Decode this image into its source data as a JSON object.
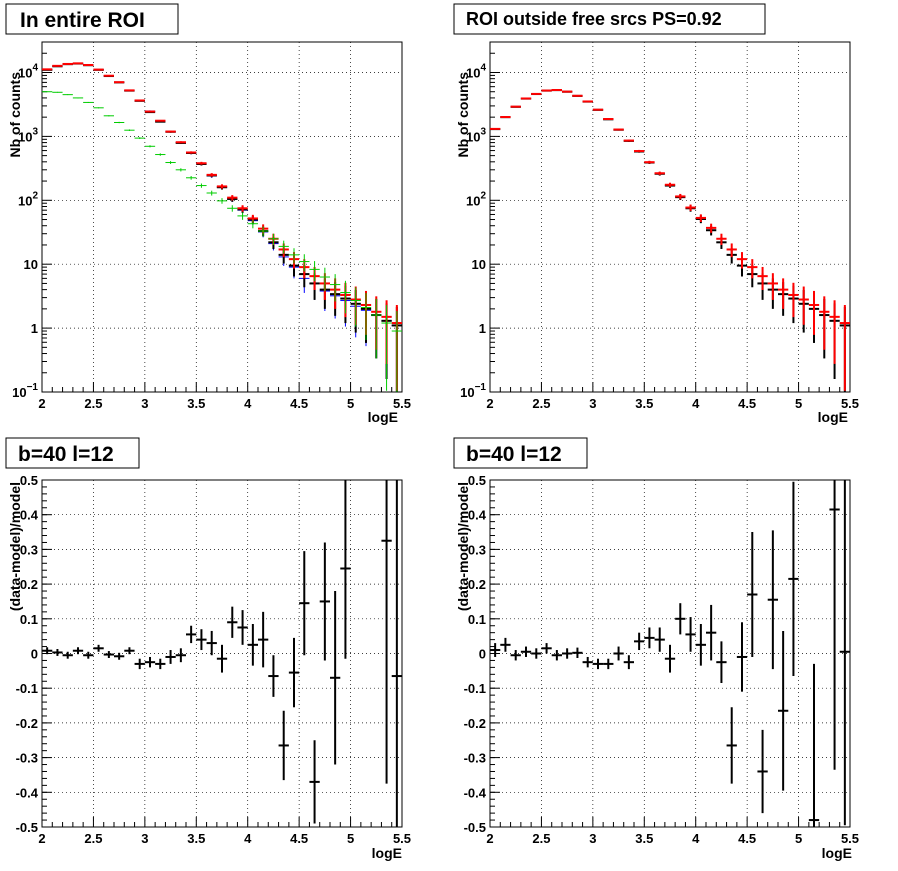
{
  "chart_data": [
    {
      "type": "scatter",
      "title": "In entire ROI",
      "xlabel": "logE",
      "ylabel": "Nb of counts",
      "xlim": [
        2,
        5.5
      ],
      "ylim": [
        0.1,
        30000
      ],
      "yscale": "log",
      "grid": true,
      "x_ticks": [
        "2",
        "2.5",
        "3",
        "3.5",
        "4",
        "4.5",
        "5",
        "5.5"
      ],
      "y_ticks": [
        {
          "value": 0.1,
          "base": "10",
          "exp": "−1"
        },
        {
          "value": 1,
          "label": "1"
        },
        {
          "value": 10,
          "label": "10"
        },
        {
          "value": 100,
          "base": "10",
          "exp": "2"
        },
        {
          "value": 1000,
          "base": "10",
          "exp": "3"
        },
        {
          "value": 10000,
          "base": "10",
          "exp": "4"
        }
      ],
      "series": [
        {
          "color": "#0000ff",
          "x": [
            2.05,
            2.15,
            2.25,
            2.35,
            2.45,
            2.55,
            2.65,
            2.75,
            2.85,
            2.95,
            3.05,
            3.15,
            3.25,
            3.35,
            3.45,
            3.55,
            3.65,
            3.75,
            3.85,
            3.95,
            4.05,
            4.15,
            4.25,
            4.35,
            4.45,
            4.55,
            4.65,
            4.75,
            4.85,
            4.95,
            5.05,
            5.15,
            5.25,
            5.35,
            5.45
          ],
          "y": [
            11000,
            12500,
            13500,
            13800,
            13000,
            11000,
            8800,
            7000,
            5200,
            3600,
            2500,
            1750,
            1180,
            800,
            550,
            370,
            240,
            160,
            105,
            70,
            48,
            32,
            21,
            13,
            9,
            6,
            5,
            3.8,
            3.2,
            2.7,
            2.2,
            1.9,
            1.6,
            1.3,
            1.1
          ]
        },
        {
          "color": "#000000",
          "x": [
            2.05,
            2.15,
            2.25,
            2.35,
            2.45,
            2.55,
            2.65,
            2.75,
            2.85,
            2.95,
            3.05,
            3.15,
            3.25,
            3.35,
            3.45,
            3.55,
            3.65,
            3.75,
            3.85,
            3.95,
            4.05,
            4.15,
            4.25,
            4.35,
            4.45,
            4.55,
            4.65,
            4.75,
            4.85,
            4.95,
            5.05,
            5.15,
            5.25,
            5.35,
            5.45
          ],
          "y": [
            11000,
            12500,
            13500,
            13800,
            13000,
            11000,
            8800,
            7000,
            5200,
            3600,
            2400,
            1700,
            1180,
            790,
            550,
            370,
            245,
            160,
            105,
            72,
            50,
            33,
            22,
            14,
            9.5,
            7,
            5,
            4,
            3.4,
            2.9,
            2.4,
            2,
            1.6,
            1.3,
            1.1
          ]
        },
        {
          "color": "#ff0000",
          "x": [
            2.05,
            2.15,
            2.25,
            2.35,
            2.45,
            2.55,
            2.65,
            2.75,
            2.85,
            2.95,
            3.05,
            3.15,
            3.25,
            3.35,
            3.45,
            3.55,
            3.65,
            3.75,
            3.85,
            3.95,
            4.05,
            4.15,
            4.25,
            4.35,
            4.45,
            4.55,
            4.65,
            4.75,
            4.85,
            4.95,
            5.05,
            5.15,
            5.25,
            5.35,
            5.45
          ],
          "y": [
            11200,
            12700,
            13600,
            13900,
            13100,
            11100,
            8900,
            7050,
            5250,
            3650,
            2450,
            1760,
            1190,
            810,
            560,
            380,
            250,
            165,
            110,
            75,
            52,
            36,
            25,
            17,
            12,
            9,
            6.5,
            5,
            4,
            3.3,
            2.8,
            2.3,
            1.8,
            1.5,
            1.2
          ]
        },
        {
          "color": "#00cc00",
          "x": [
            2.05,
            2.15,
            2.25,
            2.35,
            2.45,
            2.55,
            2.65,
            2.75,
            2.85,
            2.95,
            3.05,
            3.15,
            3.25,
            3.35,
            3.45,
            3.55,
            3.65,
            3.75,
            3.85,
            3.95,
            4.05,
            4.15,
            4.25,
            4.35,
            4.45,
            4.55,
            4.65,
            4.75,
            4.85,
            4.95,
            5.05,
            5.15,
            5.25,
            5.35,
            5.45
          ],
          "y": [
            5000,
            4900,
            4500,
            4000,
            3400,
            2800,
            2100,
            1650,
            1250,
            940,
            700,
            520,
            390,
            300,
            225,
            170,
            130,
            98,
            75,
            57,
            43,
            33,
            25,
            19,
            14,
            11,
            8.3,
            6.3,
            4.8,
            3.6,
            2.7,
            2.1,
            1.6,
            1.2,
            0.9
          ]
        }
      ]
    },
    {
      "type": "scatter",
      "title": "ROI outside free srcs PS=0.92",
      "xlabel": "logE",
      "ylabel": "Nb of counts",
      "xlim": [
        2,
        5.5
      ],
      "ylim": [
        0.1,
        30000
      ],
      "yscale": "log",
      "grid": true,
      "x_ticks": [
        "2",
        "2.5",
        "3",
        "3.5",
        "4",
        "4.5",
        "5",
        "5.5"
      ],
      "y_ticks": [
        {
          "value": 0.1,
          "base": "10",
          "exp": "−1"
        },
        {
          "value": 1,
          "label": "1"
        },
        {
          "value": 10,
          "label": "10"
        },
        {
          "value": 100,
          "base": "10",
          "exp": "2"
        },
        {
          "value": 1000,
          "base": "10",
          "exp": "3"
        },
        {
          "value": 10000,
          "base": "10",
          "exp": "4"
        }
      ],
      "series": [
        {
          "color": "#000000",
          "x": [
            2.05,
            2.15,
            2.25,
            2.35,
            2.45,
            2.55,
            2.65,
            2.75,
            2.85,
            2.95,
            3.05,
            3.15,
            3.25,
            3.35,
            3.45,
            3.55,
            3.65,
            3.75,
            3.85,
            3.95,
            4.05,
            4.15,
            4.25,
            4.35,
            4.45,
            4.55,
            4.65,
            4.75,
            4.85,
            4.95,
            5.05,
            5.15,
            5.25,
            5.35,
            5.45
          ],
          "y": [
            1300,
            2000,
            2900,
            3900,
            4600,
            5200,
            5300,
            5000,
            4300,
            3500,
            2600,
            1850,
            1270,
            850,
            580,
            390,
            260,
            170,
            112,
            75,
            51,
            34,
            22,
            14,
            9.5,
            7,
            5,
            4,
            3.4,
            2.9,
            2.4,
            2,
            1.6,
            1.3,
            1.1
          ]
        },
        {
          "color": "#ff0000",
          "x": [
            2.05,
            2.15,
            2.25,
            2.35,
            2.45,
            2.55,
            2.65,
            2.75,
            2.85,
            2.95,
            3.05,
            3.15,
            3.25,
            3.35,
            3.45,
            3.55,
            3.65,
            3.75,
            3.85,
            3.95,
            4.05,
            4.15,
            4.25,
            4.35,
            4.45,
            4.55,
            4.65,
            4.75,
            4.85,
            4.95,
            5.05,
            5.15,
            5.25,
            5.35,
            5.45
          ],
          "y": [
            1310,
            2010,
            2920,
            3920,
            4620,
            5220,
            5320,
            5020,
            4320,
            3520,
            2620,
            1870,
            1280,
            860,
            590,
            395,
            265,
            175,
            115,
            77,
            53,
            37,
            25,
            17,
            12,
            9,
            6.5,
            5,
            4,
            3.3,
            2.8,
            2.3,
            1.8,
            1.5,
            1.2
          ]
        }
      ]
    },
    {
      "type": "scatter",
      "title": "b=40 l=12",
      "xlabel": "logE",
      "ylabel": "(data-model)/model",
      "xlim": [
        2,
        5.5
      ],
      "ylim": [
        -0.5,
        0.5
      ],
      "grid": true,
      "x_ticks": [
        "2",
        "2.5",
        "3",
        "3.5",
        "4",
        "4.5",
        "5",
        "5.5"
      ],
      "y_ticks": [
        "-0.5",
        "-0.4",
        "-0.3",
        "-0.2",
        "-0.1",
        "0",
        "0.1",
        "0.2",
        "0.3",
        "0.4",
        "0.5"
      ],
      "series": [
        {
          "color": "#000000",
          "x": [
            2.05,
            2.15,
            2.25,
            2.35,
            2.45,
            2.55,
            2.65,
            2.75,
            2.85,
            2.95,
            3.05,
            3.15,
            3.25,
            3.35,
            3.45,
            3.55,
            3.65,
            3.75,
            3.85,
            3.95,
            4.05,
            4.15,
            4.25,
            4.35,
            4.45,
            4.55,
            4.65,
            4.75,
            4.85,
            4.95,
            5.05,
            5.15,
            5.25,
            5.35,
            5.45
          ],
          "y": [
            0.008,
            0.003,
            -0.005,
            0.008,
            -0.005,
            0.015,
            -0.003,
            -0.008,
            0.008,
            -0.03,
            -0.025,
            -0.03,
            -0.01,
            -0.005,
            0.055,
            0.04,
            0.03,
            -0.015,
            0.09,
            0.075,
            0.025,
            0.04,
            -0.065,
            -0.265,
            -0.055,
            0.145,
            -0.37,
            0.15,
            -0.07,
            0.245,
            0,
            0,
            0,
            0.325,
            -0.065
          ],
          "err": [
            0.01,
            0.01,
            0.01,
            0.01,
            0.01,
            0.01,
            0.01,
            0.01,
            0.01,
            0.015,
            0.015,
            0.015,
            0.02,
            0.02,
            0.025,
            0.03,
            0.035,
            0.04,
            0.045,
            0.05,
            0.06,
            0.08,
            0.06,
            0.1,
            0.1,
            0.15,
            0.12,
            0.17,
            0.25,
            0.26,
            0,
            0,
            0,
            0.7,
            0.6
          ]
        }
      ]
    },
    {
      "type": "scatter",
      "title": "b=40 l=12",
      "xlabel": "logE",
      "ylabel": "(data-model)/model",
      "xlim": [
        2,
        5.5
      ],
      "ylim": [
        -0.5,
        0.5
      ],
      "grid": true,
      "x_ticks": [
        "2",
        "2.5",
        "3",
        "3.5",
        "4",
        "4.5",
        "5",
        "5.5"
      ],
      "y_ticks": [
        "-0.5",
        "-0.4",
        "-0.3",
        "-0.2",
        "-0.1",
        "0",
        "0.1",
        "0.2",
        "0.3",
        "0.4",
        "0.5"
      ],
      "series": [
        {
          "color": "#000000",
          "x": [
            2.05,
            2.15,
            2.25,
            2.35,
            2.45,
            2.55,
            2.65,
            2.75,
            2.85,
            2.95,
            3.05,
            3.15,
            3.25,
            3.35,
            3.45,
            3.55,
            3.65,
            3.75,
            3.85,
            3.95,
            4.05,
            4.15,
            4.25,
            4.35,
            4.45,
            4.55,
            4.65,
            4.75,
            4.85,
            4.95,
            5.05,
            5.15,
            5.25,
            5.35,
            5.45
          ],
          "y": [
            0.01,
            0.025,
            -0.005,
            0.005,
            0,
            0.015,
            -0.005,
            0,
            0.002,
            -0.025,
            -0.03,
            -0.03,
            0,
            -0.025,
            0.035,
            0.045,
            0.04,
            -0.015,
            0.1,
            0.055,
            0.025,
            0.06,
            -0.025,
            -0.265,
            -0.01,
            0.17,
            -0.34,
            0.155,
            -0.165,
            0.215,
            0,
            -0.48,
            0,
            0.415,
            0.005
          ],
          "err": [
            0.02,
            0.02,
            0.015,
            0.015,
            0.015,
            0.015,
            0.015,
            0.015,
            0.015,
            0.015,
            0.015,
            0.015,
            0.02,
            0.02,
            0.025,
            0.03,
            0.035,
            0.04,
            0.045,
            0.05,
            0.06,
            0.08,
            0.06,
            0.11,
            0.1,
            0.18,
            0.12,
            0.2,
            0.23,
            0.28,
            0,
            0.45,
            0,
            0.75,
            0.5
          ]
        }
      ]
    }
  ]
}
